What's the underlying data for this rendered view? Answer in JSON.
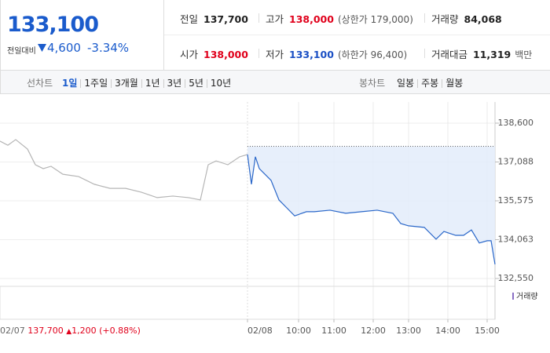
{
  "quote": {
    "price": "133,100",
    "change_label": "전일대비",
    "change": "4,600",
    "change_pct": "-3.34%"
  },
  "stats": [
    {
      "label": "전일",
      "value": "137,700",
      "color": "#222222"
    },
    {
      "label": "고가",
      "value": "138,000",
      "note": "(상한가 179,000)",
      "color": "#e0001b"
    },
    {
      "label": "거래량",
      "value": "84,068",
      "color": "#222222"
    },
    {
      "label": "시가",
      "value": "138,000",
      "color": "#e0001b"
    },
    {
      "label": "저가",
      "value": "133,100",
      "note": "(하한가 96,400)",
      "color": "#1a4fc4"
    },
    {
      "label": "거래대금",
      "value": "11,319",
      "note": "백만",
      "color": "#222222"
    }
  ],
  "tabs": {
    "line_label": "선차트",
    "line_options": [
      "1일",
      "1주일",
      "3개월",
      "1년",
      "3년",
      "5년",
      "10년"
    ],
    "candle_label": "봉차트",
    "candle_options": [
      "일봉",
      "주봉",
      "월봉"
    ]
  },
  "chart_data": {
    "type": "line",
    "series": [
      {
        "name": "02/07",
        "color": "#b5b5b5",
        "x": [
          0,
          2,
          4,
          7,
          9,
          11,
          13,
          16,
          20,
          24,
          28,
          32,
          36,
          40,
          44,
          48,
          51,
          53,
          55,
          58,
          61,
          63
        ],
        "values": [
          137900,
          137740,
          137960,
          137590,
          136980,
          136830,
          136920,
          136610,
          136520,
          136220,
          136060,
          136060,
          135910,
          135700,
          135760,
          135700,
          135610,
          136980,
          137130,
          136980,
          137290,
          137380
        ]
      },
      {
        "name": "02/08",
        "color": "#2a67c9",
        "x": [
          63,
          64,
          65,
          66,
          69,
          71,
          73,
          75,
          78,
          80,
          84,
          88,
          92,
          96,
          100,
          102,
          104,
          108,
          111,
          113,
          116,
          118,
          120,
          122,
          124,
          125,
          126
        ],
        "values": [
          137380,
          136220,
          137290,
          136830,
          136370,
          135610,
          135300,
          134990,
          135150,
          135150,
          135210,
          135090,
          135150,
          135210,
          135090,
          134690,
          134600,
          134540,
          134080,
          134380,
          134230,
          134230,
          134440,
          133930,
          134020,
          134020,
          133100
        ]
      }
    ],
    "baseline": 137700,
    "xlim": [
      0,
      126
    ],
    "xticks": [
      {
        "value": 63,
        "label": "02/08"
      },
      {
        "value": 76,
        "label": "10:00"
      },
      {
        "value": 85,
        "label": "11:00"
      },
      {
        "value": 95,
        "label": "12:00"
      },
      {
        "value": 104,
        "label": "13:00"
      },
      {
        "value": 114,
        "label": "14:00"
      },
      {
        "value": 124,
        "label": "15:00"
      }
    ],
    "ylim": [
      132550,
      138600
    ],
    "yticks": [
      {
        "value": 138600,
        "label": "138,600"
      },
      {
        "value": 137087.5,
        "label": "137,088"
      },
      {
        "value": 135575,
        "label": "135,575"
      },
      {
        "value": 134062.5,
        "label": "134,063"
      },
      {
        "value": 132550,
        "label": "132,550"
      }
    ],
    "volume_label": "거래량",
    "prev_day": {
      "date": "02/07",
      "close": "137,700",
      "change": "1,200",
      "change_pct": "(+0.88%)"
    }
  }
}
